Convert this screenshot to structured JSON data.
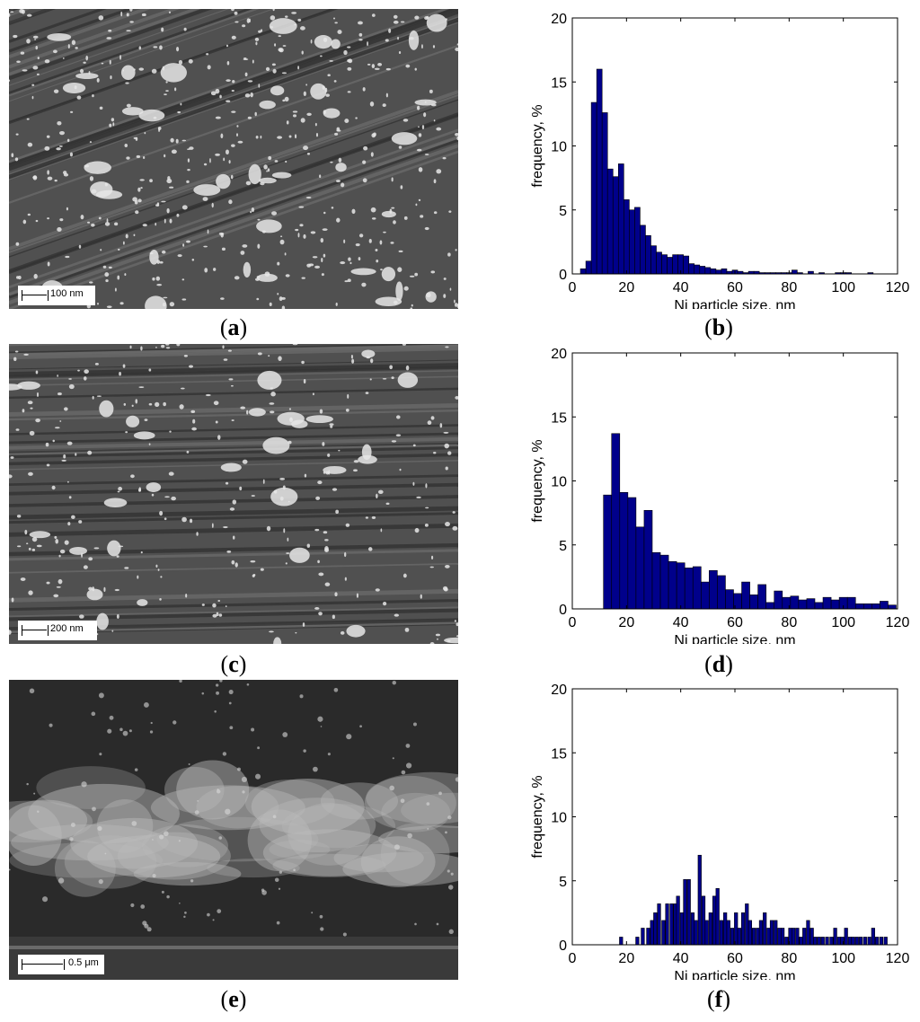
{
  "panels": [
    {
      "id": "a",
      "caption": "a",
      "scalebar": "100 nm",
      "style": "dense"
    },
    {
      "id": "c",
      "caption": "c",
      "scalebar": "200 nm",
      "style": "fibers"
    },
    {
      "id": "e",
      "caption": "e",
      "scalebar": "0.5 μm",
      "style": "fuzzy"
    }
  ],
  "chart_captions": [
    "b",
    "d",
    "f"
  ],
  "bar_color": "#00008b",
  "chart_data": [
    {
      "type": "bar",
      "id": "b",
      "xlabel": "Ni particle size, nm",
      "ylabel": "frequency, %",
      "xlim": [
        0,
        120
      ],
      "ylim": [
        0,
        20
      ],
      "xticks": [
        0,
        20,
        40,
        60,
        80,
        100,
        120
      ],
      "yticks": [
        0,
        5,
        10,
        15,
        20
      ],
      "bin_width": 2,
      "x": [
        4,
        6,
        8,
        10,
        12,
        14,
        16,
        18,
        20,
        22,
        24,
        26,
        28,
        30,
        32,
        34,
        36,
        38,
        40,
        42,
        44,
        46,
        48,
        50,
        52,
        54,
        56,
        58,
        60,
        62,
        64,
        66,
        68,
        70,
        72,
        74,
        76,
        78,
        80,
        82,
        84,
        86,
        88,
        90,
        92,
        94,
        96,
        98,
        100,
        102,
        104,
        106,
        108,
        110
      ],
      "values": [
        0.4,
        1.0,
        13.4,
        16.0,
        12.6,
        8.2,
        7.6,
        8.6,
        5.8,
        5.0,
        5.2,
        3.8,
        3.0,
        2.2,
        1.7,
        1.5,
        1.3,
        1.5,
        1.5,
        1.4,
        0.8,
        0.7,
        0.6,
        0.5,
        0.4,
        0.3,
        0.4,
        0.2,
        0.3,
        0.2,
        0.1,
        0.2,
        0.2,
        0.1,
        0.1,
        0.1,
        0.1,
        0.1,
        0.1,
        0.3,
        0.1,
        0.0,
        0.2,
        0.0,
        0.1,
        0.0,
        0.0,
        0.1,
        0.1,
        0.1,
        0.0,
        0.0,
        0.0,
        0.1
      ]
    },
    {
      "type": "bar",
      "id": "d",
      "xlabel": "Ni particle size, nm",
      "ylabel": "frequency, %",
      "xlim": [
        0,
        120
      ],
      "ylim": [
        0,
        20
      ],
      "xticks": [
        0,
        20,
        40,
        60,
        80,
        100,
        120
      ],
      "yticks": [
        0,
        5,
        10,
        15,
        20
      ],
      "bin_width": 3,
      "x": [
        13,
        16,
        19,
        22,
        25,
        28,
        31,
        34,
        37,
        40,
        43,
        46,
        49,
        52,
        55,
        58,
        61,
        64,
        67,
        70,
        73,
        76,
        79,
        82,
        85,
        88,
        91,
        94,
        97,
        100,
        103,
        106,
        109,
        112,
        115,
        118
      ],
      "values": [
        8.9,
        13.7,
        9.1,
        8.7,
        6.4,
        7.7,
        4.4,
        4.2,
        3.7,
        3.6,
        3.2,
        3.3,
        2.1,
        3.0,
        2.6,
        1.5,
        1.2,
        2.1,
        1.1,
        1.9,
        0.5,
        1.4,
        0.9,
        1.0,
        0.7,
        0.8,
        0.5,
        0.9,
        0.7,
        0.9,
        0.9,
        0.4,
        0.4,
        0.4,
        0.6,
        0.3
      ]
    },
    {
      "type": "bar",
      "id": "f",
      "xlabel": "Ni particle size, nm",
      "ylabel": "frequency, %",
      "xlim": [
        0,
        120
      ],
      "ylim": [
        0,
        20
      ],
      "xticks": [
        0,
        20,
        40,
        60,
        80,
        100,
        120
      ],
      "yticks": [
        0,
        5,
        10,
        15,
        20
      ],
      "bin_width": 1.2,
      "x": [
        18,
        24,
        26,
        28,
        29.4,
        30.6,
        32,
        33.6,
        35,
        36.6,
        38,
        39,
        40.4,
        41.6,
        43,
        44.4,
        45.6,
        47,
        48.4,
        49.6,
        51,
        52.4,
        53.6,
        55,
        56.4,
        57.6,
        59,
        60.4,
        61.6,
        63,
        64.4,
        65.6,
        67,
        68.4,
        69.6,
        71,
        72.4,
        73.6,
        75,
        76.4,
        77.6,
        79,
        80.4,
        81.6,
        83,
        84.4,
        85.6,
        87,
        88.4,
        89.6,
        91,
        92.4,
        94,
        95.6,
        97,
        98.4,
        99.6,
        101,
        102.4,
        103.6,
        105,
        106.4,
        108,
        109.6,
        111,
        112.4,
        114,
        115.6
      ],
      "values": [
        0.6,
        0.6,
        1.3,
        1.3,
        1.9,
        2.5,
        3.2,
        1.9,
        3.2,
        3.2,
        3.2,
        3.8,
        2.5,
        5.1,
        5.1,
        2.5,
        1.9,
        7.0,
        3.8,
        1.9,
        2.5,
        3.8,
        4.4,
        1.9,
        2.5,
        1.9,
        1.3,
        2.5,
        1.3,
        2.5,
        3.2,
        1.9,
        1.3,
        1.3,
        1.9,
        2.5,
        1.3,
        1.9,
        1.9,
        1.3,
        1.3,
        0.6,
        1.3,
        1.3,
        1.3,
        0.6,
        1.3,
        1.9,
        1.3,
        0.6,
        0.6,
        0.6,
        0.6,
        0.6,
        1.3,
        0.6,
        0.6,
        1.3,
        0.6,
        0.6,
        0.6,
        0.6,
        0.6,
        0.6,
        1.3,
        0.6,
        0.6,
        0.6
      ]
    }
  ]
}
